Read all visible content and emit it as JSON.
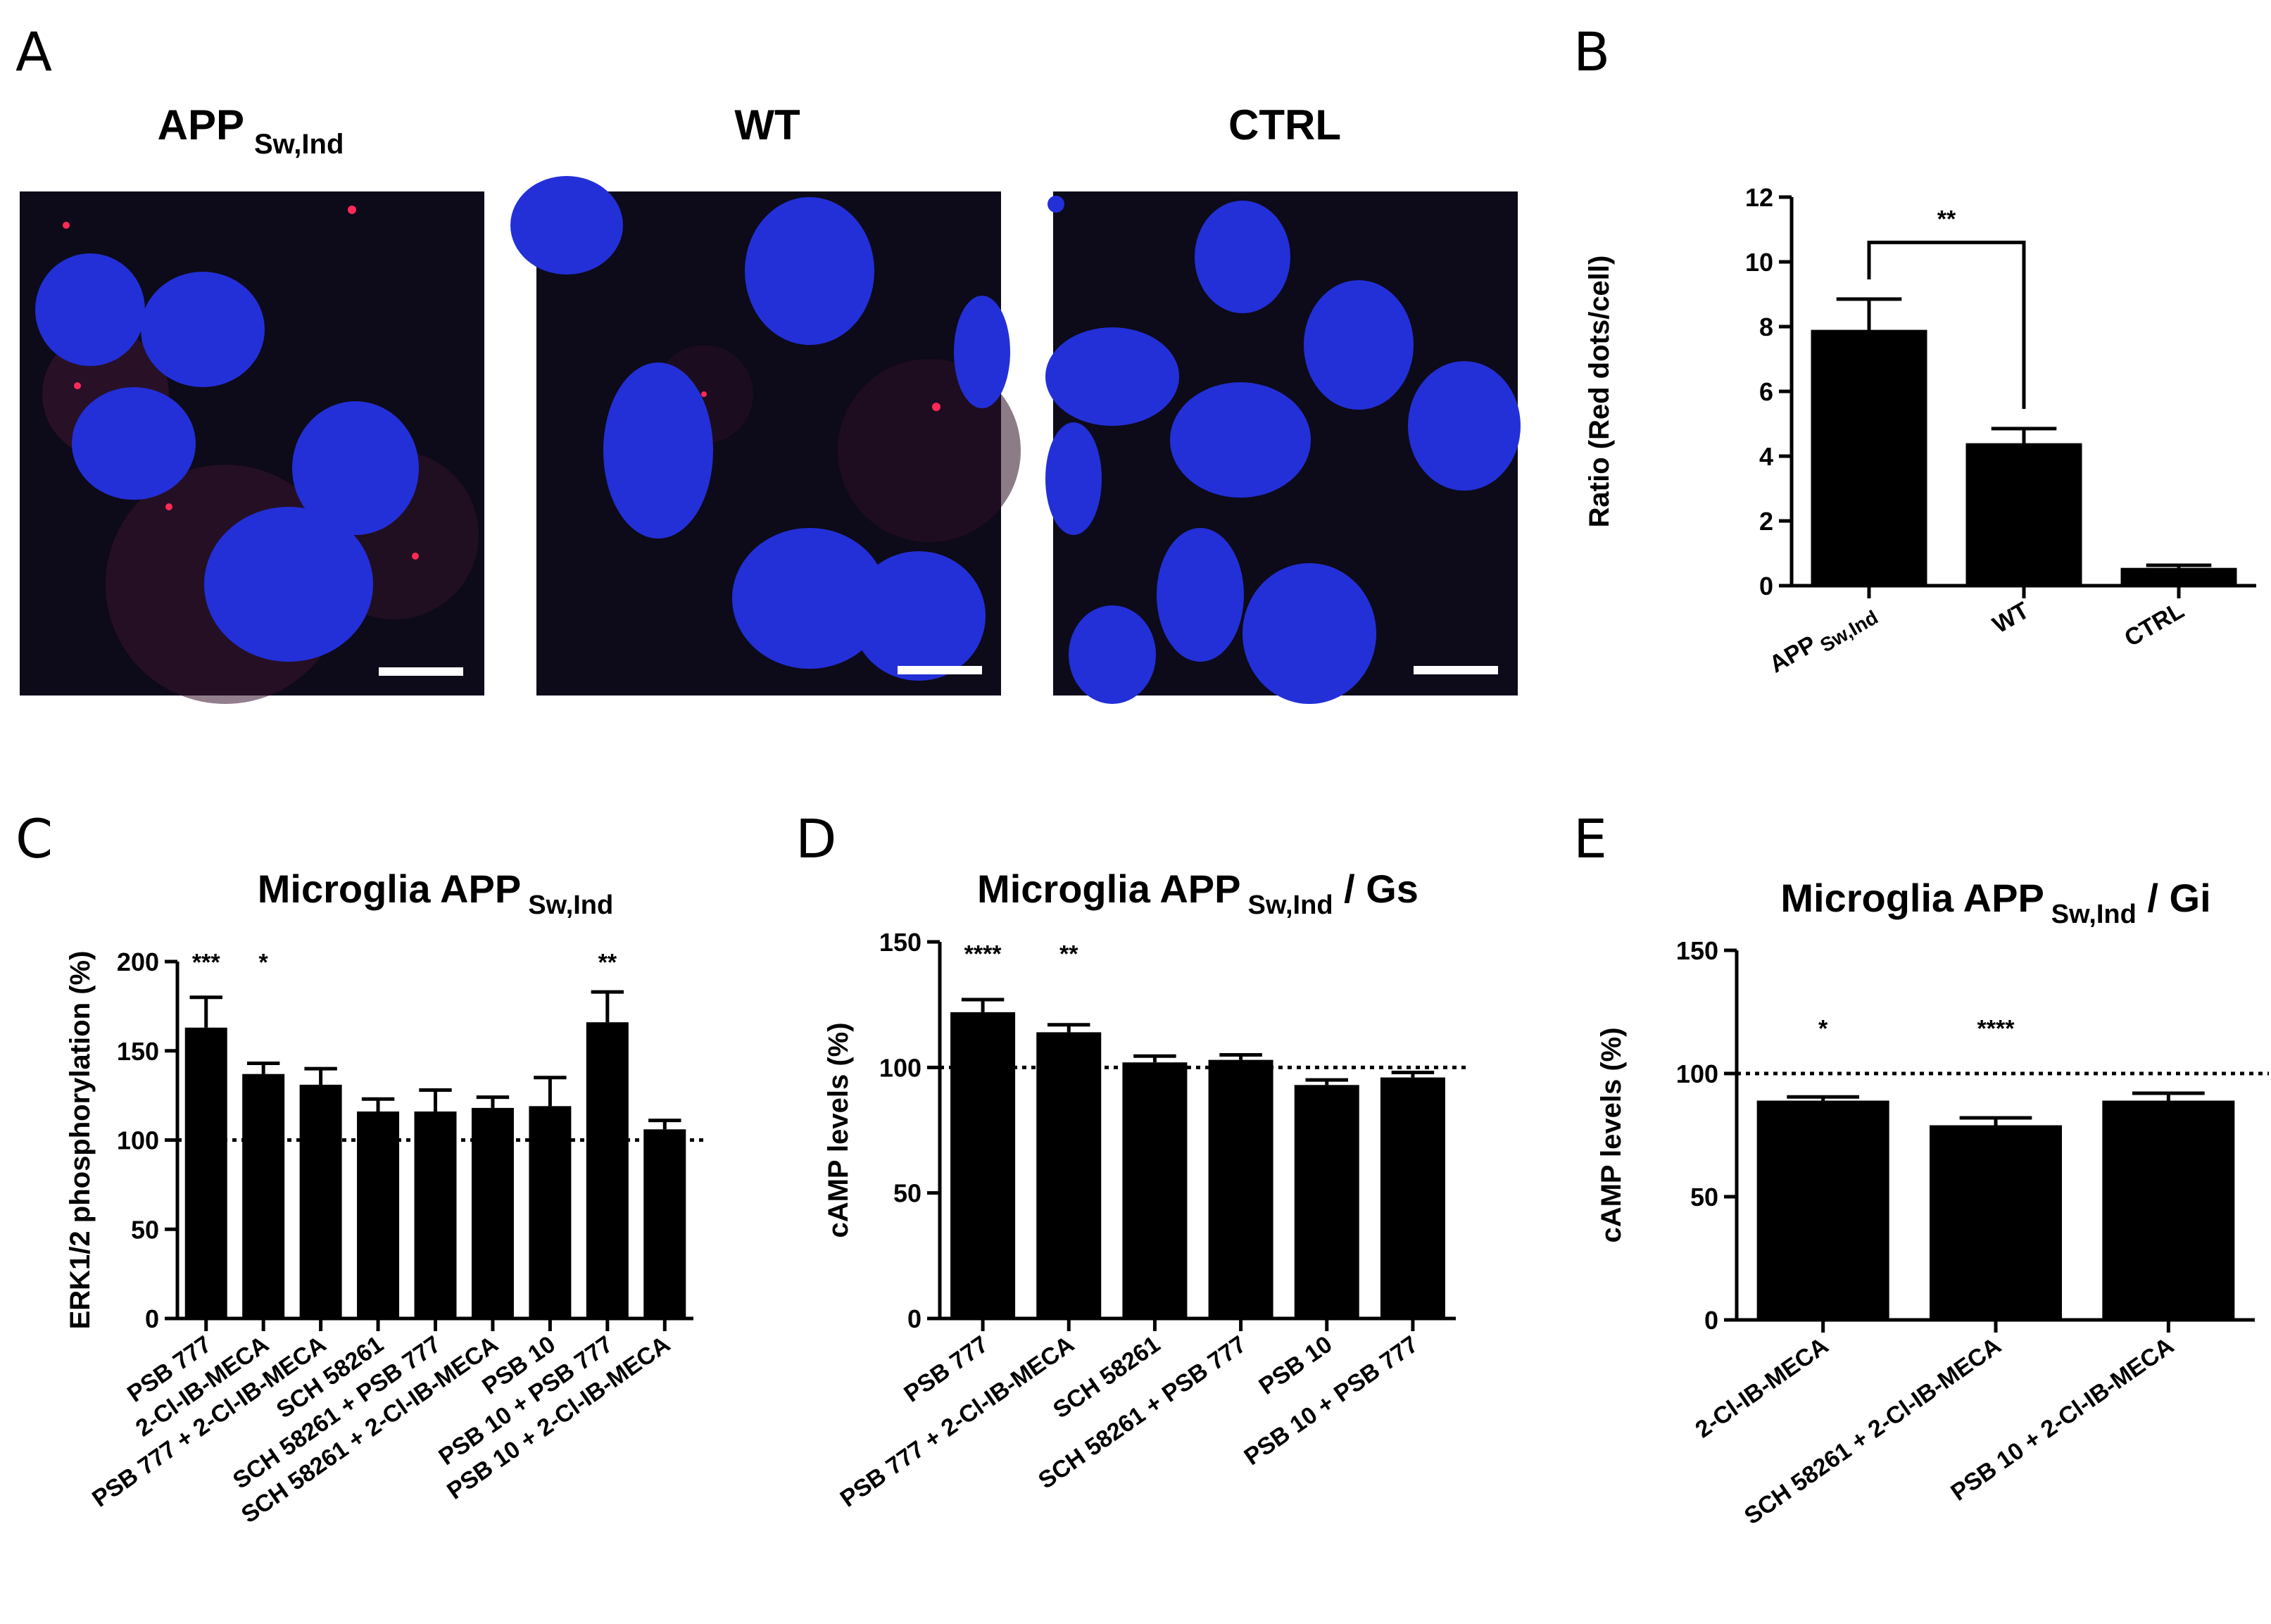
{
  "panels": {
    "a": {
      "letter": "A",
      "images": [
        {
          "title": "APP",
          "title_sub": "Sw,Ind"
        },
        {
          "title": "WT",
          "title_sub": ""
        },
        {
          "title": "CTRL",
          "title_sub": ""
        }
      ]
    },
    "b": {
      "letter": "B"
    },
    "c": {
      "letter": "C"
    },
    "d": {
      "letter": "D"
    },
    "e": {
      "letter": "E"
    }
  },
  "colors": {
    "bar": "#000000",
    "nucleus": "#2a3cff",
    "background_image": "#0d0a1a",
    "red_dots": "#ff2a55",
    "scale_bar": "#ffffff"
  },
  "chart_data": [
    {
      "id": "B",
      "type": "bar",
      "title": "",
      "xlabel": "",
      "ylabel": "Ratio (Red dots/cell)",
      "ylim": [
        0,
        12
      ],
      "yticks": [
        0,
        2,
        4,
        6,
        8,
        10,
        12
      ],
      "categories": [
        {
          "main": "APP",
          "sub": "Sw,Ind"
        },
        {
          "main": "WT",
          "sub": ""
        },
        {
          "main": "CTRL",
          "sub": ""
        }
      ],
      "values": [
        7.9,
        4.4,
        0.55
      ],
      "errors": [
        0.95,
        0.45,
        0.08
      ],
      "significance": [
        {
          "from": 0,
          "to": 1,
          "label": "**"
        }
      ],
      "grid": false
    },
    {
      "id": "C",
      "type": "bar",
      "title": "Microglia APP",
      "title_sub": "Sw,Ind",
      "title_suffix": "",
      "ylabel": "ERK1/2 phosphorylation (%)",
      "ylim": [
        0,
        200
      ],
      "yticks": [
        0,
        50,
        100,
        150,
        200
      ],
      "reference_line": 100,
      "categories": [
        "PSB 777",
        "2-Cl-IB-MECA",
        "PSB 777 + 2-Cl-IB-MECA",
        "SCH 58261",
        "SCH 58261 + PSB 777",
        "SCH 58261 + 2-Cl-IB-MECA",
        "PSB 10",
        "PSB 10 + PSB 777",
        "PSB 10 + 2-Cl-IB-MECA"
      ],
      "values": [
        163,
        137,
        131,
        116,
        116,
        118,
        119,
        166,
        106
      ],
      "errors": [
        17,
        6,
        9,
        7,
        12,
        6,
        16,
        17,
        5
      ],
      "significance_labels": [
        "***",
        "*",
        "",
        "",
        "",
        "",
        "",
        "**",
        ""
      ],
      "grid": false
    },
    {
      "id": "D",
      "type": "bar",
      "title": "Microglia APP",
      "title_sub": "Sw,Ind",
      "title_suffix": " / Gs",
      "ylabel": "cAMP levels (%)",
      "ylim": [
        0,
        150
      ],
      "yticks": [
        0,
        50,
        100,
        150
      ],
      "reference_line": 100,
      "categories": [
        "PSB 777",
        "PSB 777 + 2-Cl-IB-MECA",
        "SCH 58261",
        "SCH 58261 + PSB 777",
        "PSB 10",
        "PSB 10 + PSB 777"
      ],
      "values": [
        122,
        114,
        102,
        103,
        93,
        96
      ],
      "errors": [
        5,
        3,
        2.5,
        2,
        2,
        2
      ],
      "significance_labels": [
        "****",
        "**",
        "",
        "",
        "",
        ""
      ],
      "grid": false
    },
    {
      "id": "E",
      "type": "bar",
      "title": "Microglia APP",
      "title_sub": "Sw,Ind",
      "title_suffix": " / Gi",
      "ylabel": "cAMP levels (%)",
      "ylim": [
        0,
        150
      ],
      "yticks": [
        0,
        50,
        100,
        150
      ],
      "reference_line": 100,
      "categories": [
        "2-Cl-IB-MECA",
        "SCH 58261 + 2-Cl-IB-MECA",
        "PSB 10 + 2-Cl-IB-MECA"
      ],
      "values": [
        89,
        79,
        89
      ],
      "errors": [
        1.5,
        3,
        3
      ],
      "significance_labels": [
        "*",
        "****",
        ""
      ],
      "grid": false
    }
  ]
}
